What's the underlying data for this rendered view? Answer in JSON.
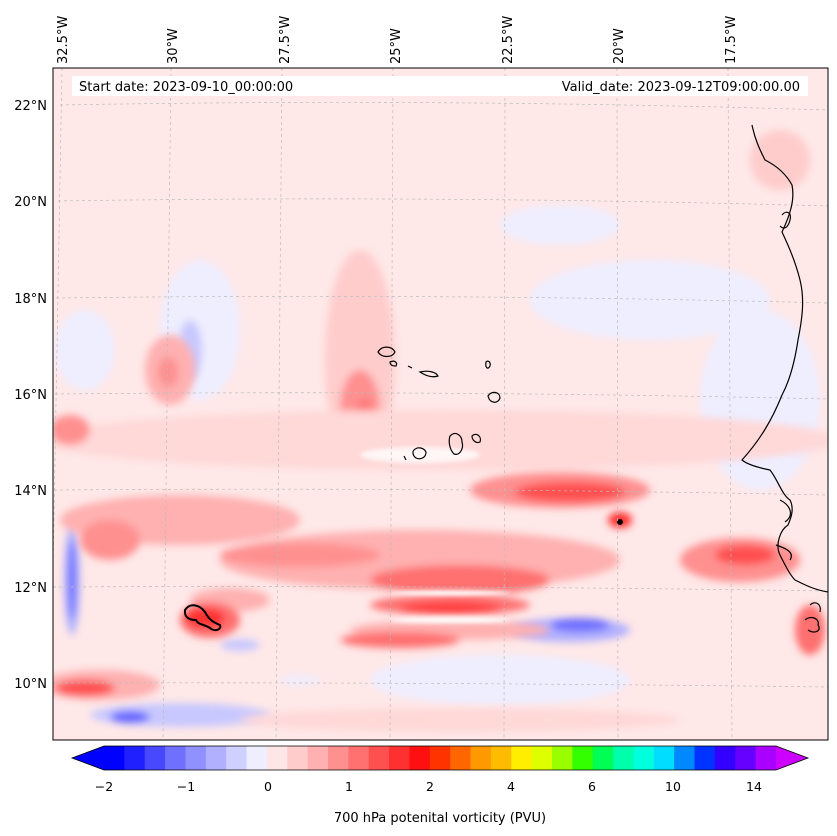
{
  "map": {
    "start_label": "Start date: 2023-09-10_00:00:00",
    "valid_label": "Valid_date: 2023-09-12T09:00:00.00",
    "lon_labels": [
      "32.5°W",
      "30°W",
      "27.5°W",
      "25°W",
      "22.5°W",
      "20°W",
      "17.5°W"
    ],
    "lat_labels": [
      "22°N",
      "20°N",
      "18°N",
      "16°N",
      "14°N",
      "12°N",
      "10°N"
    ],
    "colorbar": {
      "label": "700 hPa potenital vorticity (PVU)",
      "ticks": [
        "−2",
        "−1",
        "0",
        "1",
        "2",
        "4",
        "6",
        "10",
        "14"
      ],
      "colors": [
        "#0000ff",
        "#2020ff",
        "#4848ff",
        "#7070ff",
        "#9090ff",
        "#b0b0ff",
        "#d0d0ff",
        "#eeeeff",
        "#ffe6e6",
        "#ffcccc",
        "#ffb0b0",
        "#ff9090",
        "#ff7070",
        "#ff5050",
        "#ff3030",
        "#ff1010",
        "#ff3300",
        "#ff6600",
        "#ff9900",
        "#ffbb00",
        "#ffee00",
        "#ddff00",
        "#99ff00",
        "#33ff00",
        "#00ff55",
        "#00ffaa",
        "#00ffdd",
        "#00ddff",
        "#0088ff",
        "#0033ff",
        "#3300ff",
        "#6600ff",
        "#aa00ff"
      ],
      "under_color": "#0000ff",
      "over_color": "#cc00ff"
    },
    "background_color": "#ffe8e8"
  }
}
